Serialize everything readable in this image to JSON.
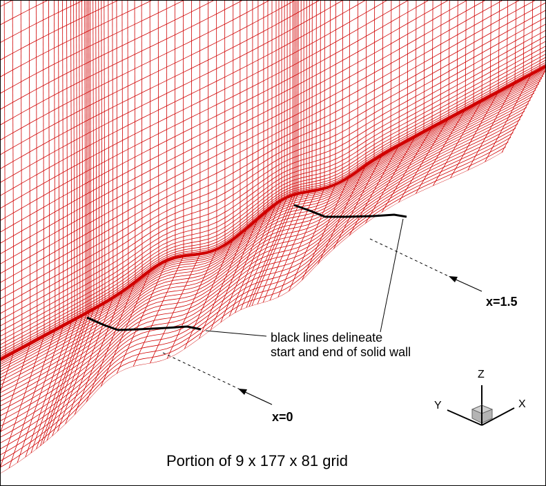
{
  "colors": {
    "grid": "#d00000",
    "wall_boundary": "#000000",
    "cube": "#b4b4b4"
  },
  "annotation": {
    "line1": "black lines delineate",
    "line2": "start and end of solid wall"
  },
  "markers": {
    "start": "x=0",
    "end": "x=1.5"
  },
  "axes": {
    "x": "X",
    "y": "Y",
    "z": "Z"
  },
  "caption": "Portion of 9 x 177 x 81 grid"
}
